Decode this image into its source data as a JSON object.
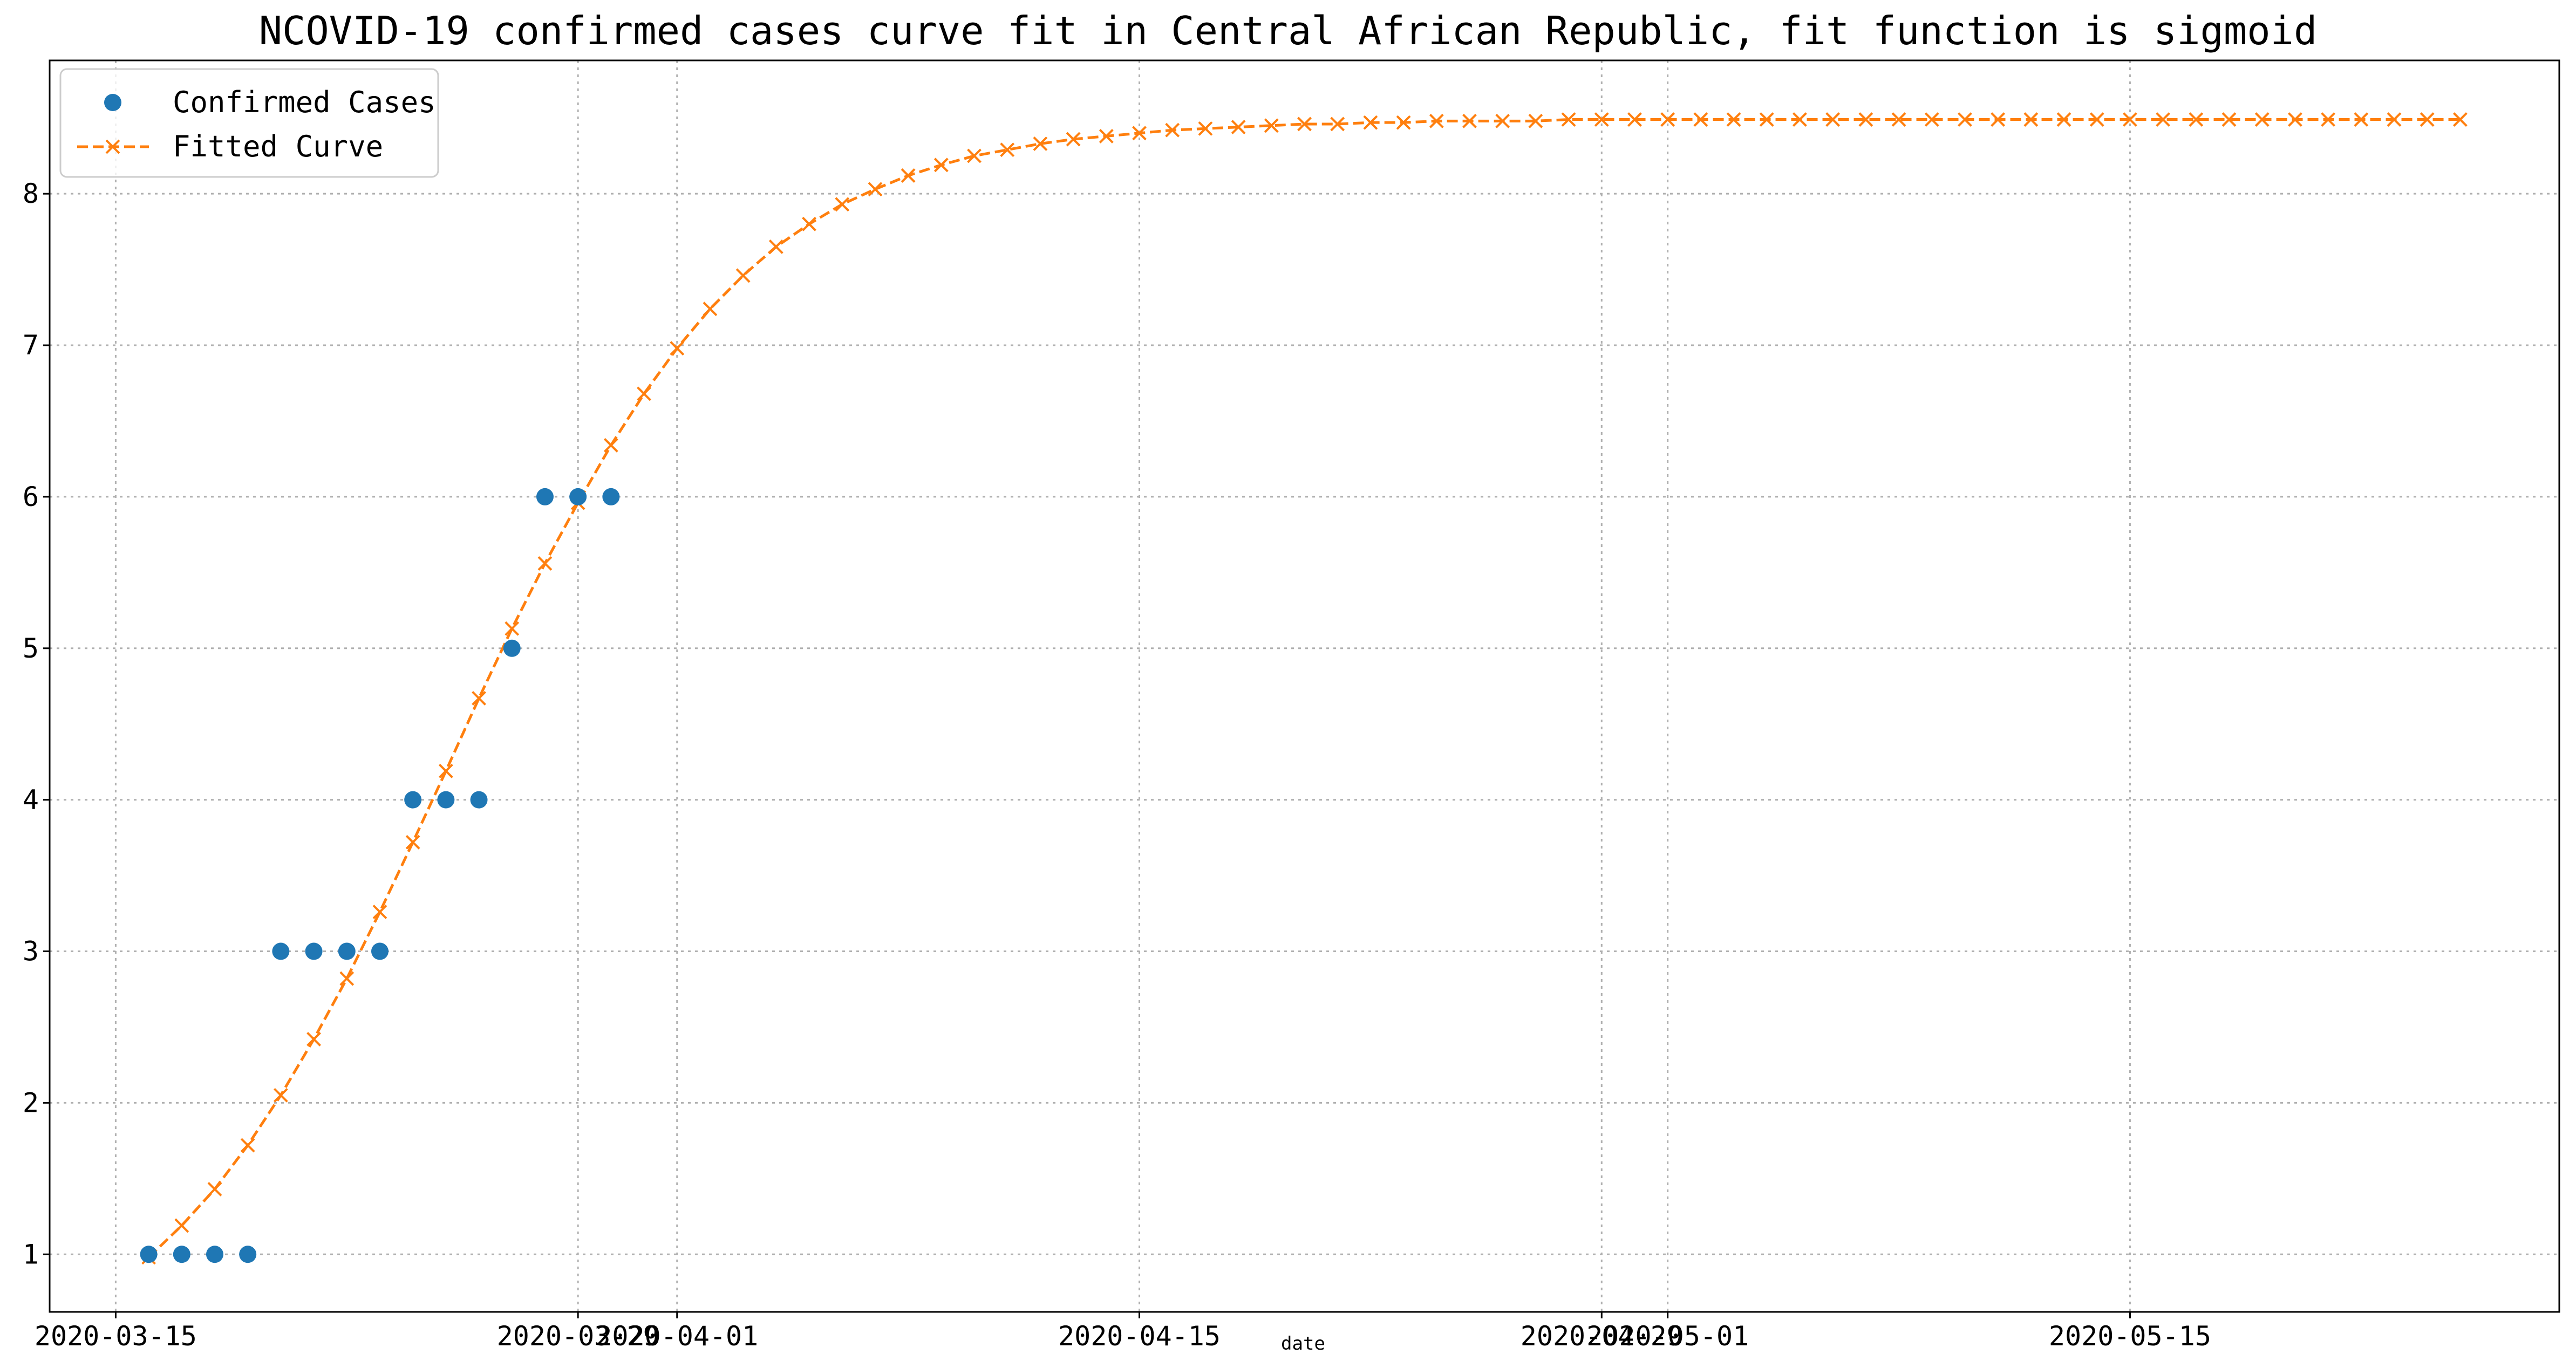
{
  "chart_data": {
    "type": "line",
    "title": "NCOVID-19 confirmed cases curve fit in Central African Republic, fit function is sigmoid",
    "xlabel": "date",
    "ylabel": "",
    "xlim": [
      "2020-03-13",
      "2020-05-28"
    ],
    "ylim": [
      0.62,
      8.88
    ],
    "grid": true,
    "legend_position": "top-left",
    "x_ticks": [
      "2020-03-15",
      "2020-03-29",
      "2020-04-01",
      "2020-04-15",
      "2020-04-29",
      "2020-05-01",
      "2020-05-15"
    ],
    "x_tick_labels": [
      "2020-03-15",
      "2020-03-29",
      "2020-04-01",
      "2020-04-15",
      "2020-04-29",
      "2020-05-01",
      "2020-05-15"
    ],
    "y_ticks": [
      1,
      2,
      3,
      4,
      5,
      6,
      7,
      8
    ],
    "series": [
      {
        "name": "Confirmed Cases",
        "style": "points",
        "color": "#1f77b4",
        "x": [
          "2020-03-16",
          "2020-03-17",
          "2020-03-18",
          "2020-03-19",
          "2020-03-20",
          "2020-03-21",
          "2020-03-22",
          "2020-03-23",
          "2020-03-24",
          "2020-03-25",
          "2020-03-26",
          "2020-03-27",
          "2020-03-28",
          "2020-03-29",
          "2020-03-30"
        ],
        "y": [
          1,
          1,
          1,
          1,
          3,
          3,
          3,
          3,
          4,
          4,
          4,
          5,
          6,
          6,
          6
        ]
      },
      {
        "name": "Fitted Curve",
        "style": "dashed-line-x-markers",
        "color": "#ff7f0e",
        "x_start": "2020-03-16",
        "x_step_days": 1,
        "y": [
          0.98,
          1.19,
          1.43,
          1.72,
          2.05,
          2.42,
          2.82,
          3.26,
          3.72,
          4.19,
          4.67,
          5.13,
          5.56,
          5.96,
          6.34,
          6.68,
          6.98,
          7.24,
          7.46,
          7.65,
          7.8,
          7.93,
          8.03,
          8.12,
          8.19,
          8.25,
          8.29,
          8.33,
          8.36,
          8.38,
          8.4,
          8.42,
          8.43,
          8.44,
          8.45,
          8.46,
          8.46,
          8.47,
          8.47,
          8.48,
          8.48,
          8.48,
          8.48,
          8.49,
          8.49,
          8.49,
          8.49,
          8.49,
          8.49,
          8.49,
          8.49,
          8.49,
          8.49,
          8.49,
          8.49,
          8.49,
          8.49,
          8.49,
          8.49,
          8.49,
          8.49,
          8.49,
          8.49,
          8.49,
          8.49,
          8.49,
          8.49,
          8.49,
          8.49,
          8.49,
          8.49
        ]
      }
    ]
  }
}
